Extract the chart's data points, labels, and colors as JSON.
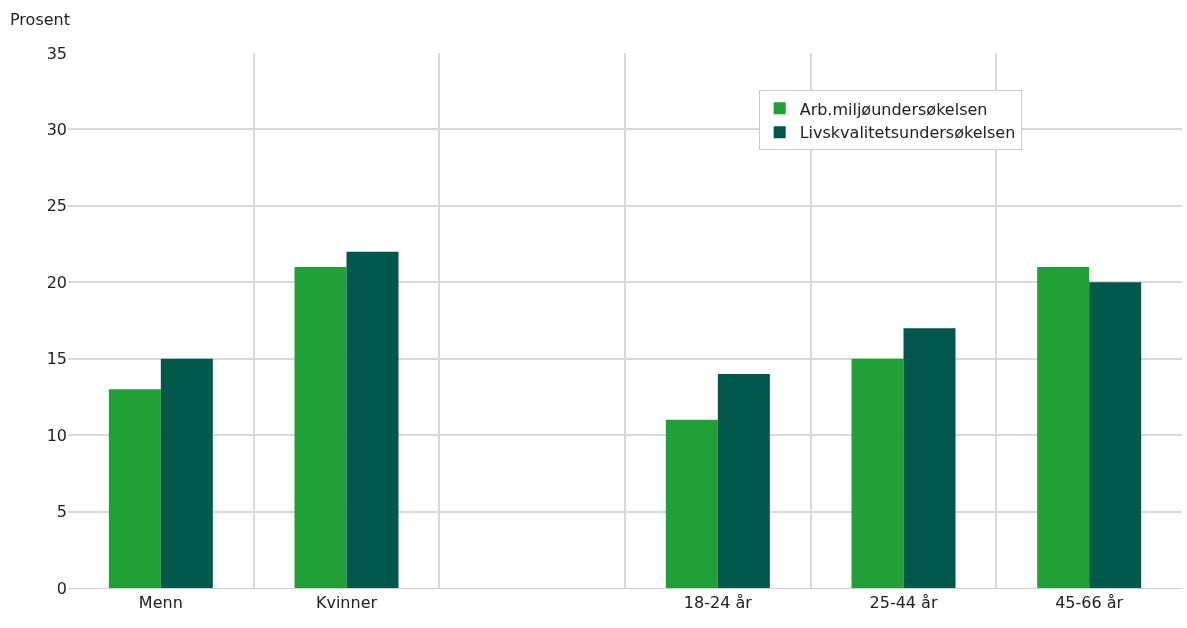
{
  "chart_data": {
    "type": "bar",
    "ylabel": "Prosent",
    "categories": [
      "Menn",
      "Kvinner",
      null,
      "18-24 år",
      "25-44 år",
      "45-66 år"
    ],
    "series": [
      {
        "name": "Arb.miljøundersøkelsen",
        "color": "#21a038",
        "values": [
          13,
          21,
          null,
          11,
          15,
          21
        ]
      },
      {
        "name": "Livskvalitetsundersøkelsen",
        "color": "#00574a",
        "values": [
          15,
          22,
          null,
          14,
          17,
          20
        ]
      }
    ],
    "ylim": [
      0,
      35
    ],
    "yticks": [
      0,
      5,
      10,
      15,
      20,
      25,
      30,
      35
    ],
    "grid": true,
    "legend": "top right"
  }
}
